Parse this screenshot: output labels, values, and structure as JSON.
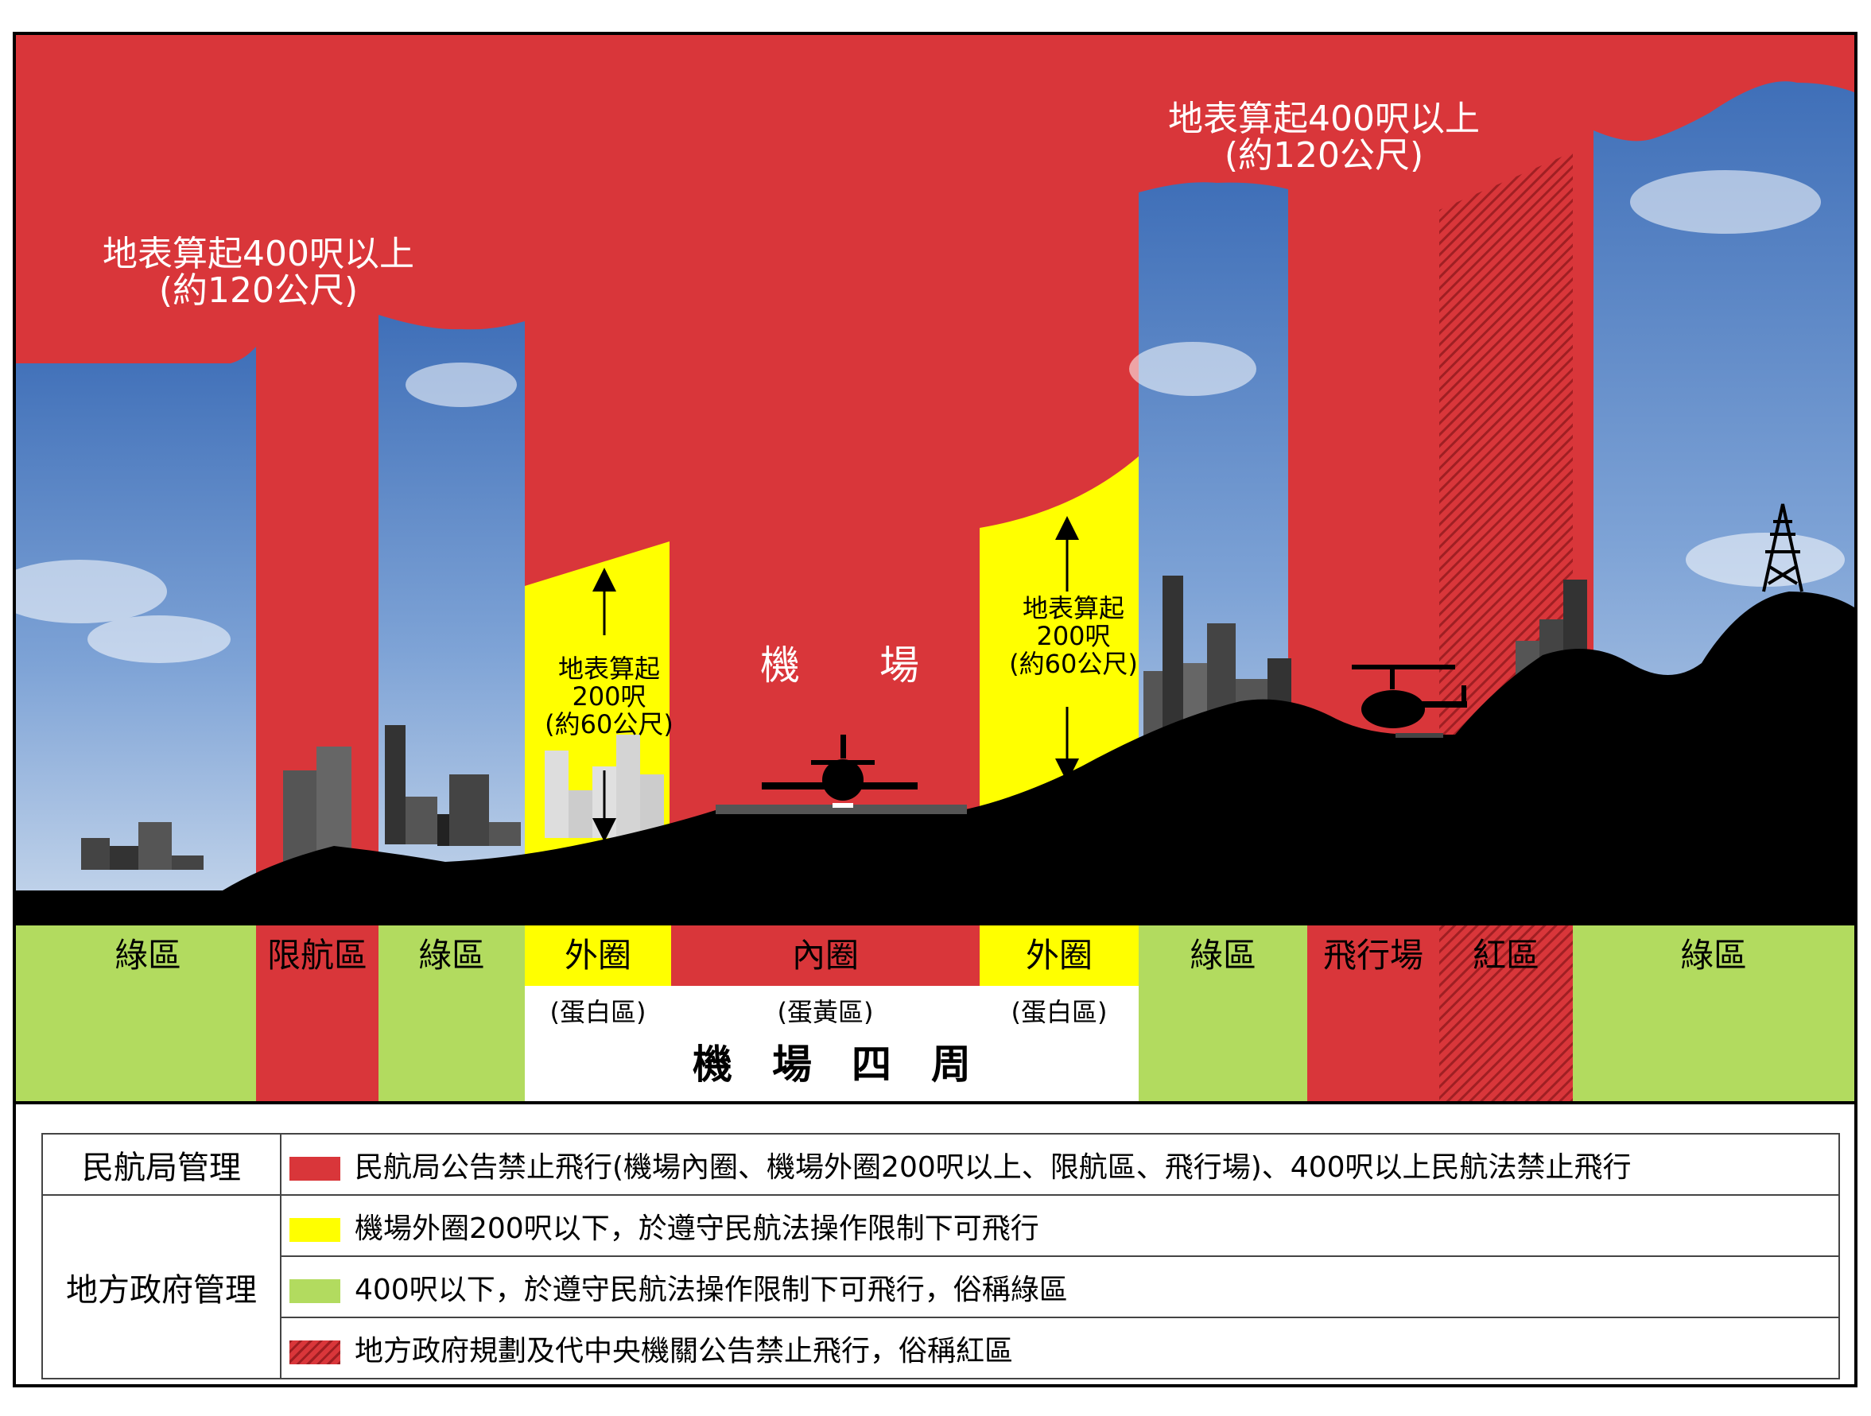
{
  "colors": {
    "red": "#d9363a",
    "yellow": "#ffff00",
    "green": "#b2db5f",
    "black": "#000000",
    "sky": "#6f95cf"
  },
  "diagram": {
    "top_label_left": {
      "line1": "地表算起400呎以上",
      "line2": "(約120公尺)"
    },
    "top_label_right": {
      "line1": "地表算起400呎以上",
      "line2": "(約120公尺)"
    },
    "airport_label": "機　　場",
    "outer_label_left": {
      "line1": "地表算起",
      "line2": "200呎",
      "line3": "(約60公尺)"
    },
    "outer_label_right": {
      "line1": "地表算起",
      "line2": "200呎",
      "line3": "(約60公尺)"
    },
    "zones": {
      "green1": "綠區",
      "restricted": "限航區",
      "green2": "綠區",
      "outer_left": "外圈",
      "inner": "內圈",
      "outer_right": "外圈",
      "green3": "綠區",
      "airfield": "飛行場",
      "red_zone": "紅區",
      "green4": "綠區"
    },
    "sub_left": "(蛋白區)",
    "sub_mid": "(蛋黃區)",
    "sub_right": "(蛋白區)",
    "airport_surroundings": "機　場　四　周"
  },
  "legend": {
    "caa": {
      "label": "民航局管理",
      "item": "民航局公告禁止飛行(機場內圈、機場外圈200呎以上、限航區、飛行場)、400呎以上民航法禁止飛行"
    },
    "local": {
      "label": "地方政府管理",
      "item_yellow": "機場外圈200呎以下，於遵守民航法操作限制下可飛行",
      "item_green": "400呎以下，於遵守民航法操作限制下可飛行，俗稱綠區",
      "item_hatch": "地方政府規劃及代中央機關公告禁止飛行，俗稱紅區"
    }
  }
}
